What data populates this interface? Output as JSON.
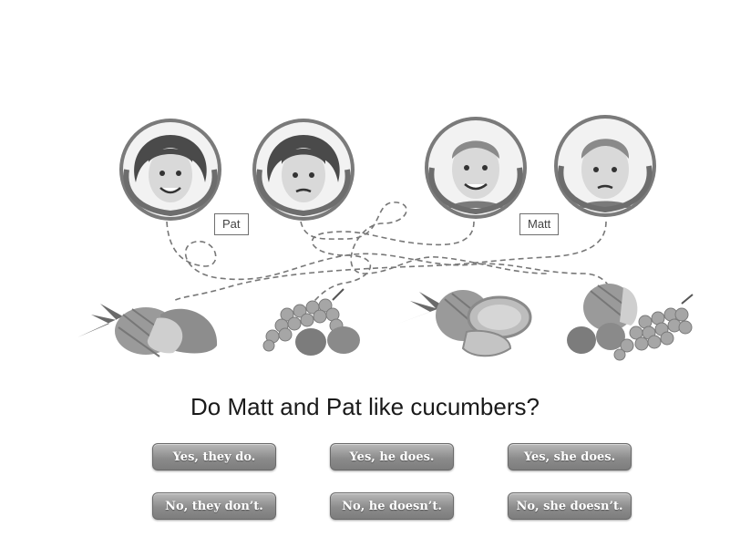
{
  "children": [
    {
      "name_tag": "",
      "mood": "happy",
      "kind": "girl"
    },
    {
      "name_tag": "Pat",
      "mood": "grumpy",
      "kind": "girl"
    },
    {
      "name_tag": "",
      "mood": "happy",
      "kind": "boy"
    },
    {
      "name_tag": "Matt",
      "mood": "grumpy",
      "kind": "boy"
    }
  ],
  "fruits": [
    "pineapple",
    "grapes-and-plums",
    "pineapple",
    "pineapple-plums-grapes"
  ],
  "question": "Do Matt and Pat like cucumbers?",
  "answers": [
    {
      "label": "Yes, they do."
    },
    {
      "label": "Yes, he does."
    },
    {
      "label": "Yes, she does."
    },
    {
      "label": "No, they don’t."
    },
    {
      "label": "No, he doesn’t."
    },
    {
      "label": "No, she doesn’t."
    }
  ],
  "colors": {
    "button": "#8c8c8c",
    "button_text": "#ffffff",
    "path": "#777777"
  }
}
